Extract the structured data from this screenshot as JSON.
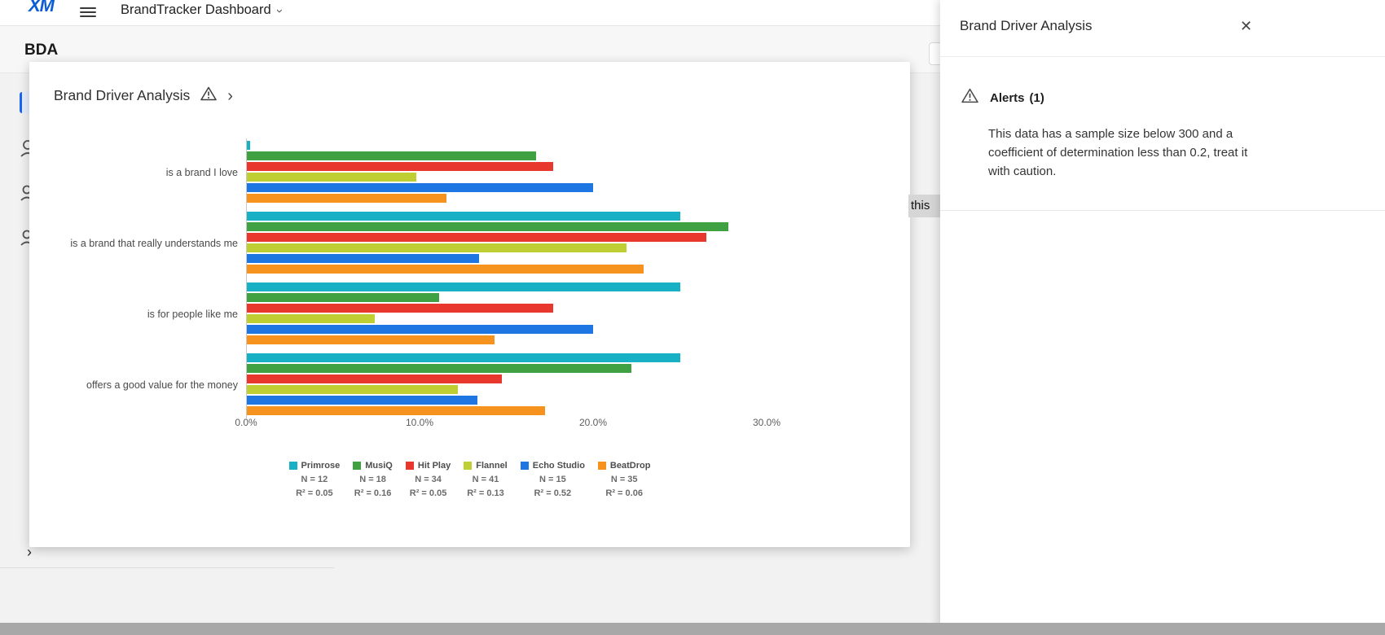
{
  "topbar": {
    "logo": "XM",
    "title": "BrandTracker Dashboard"
  },
  "page": {
    "heading": "BDA",
    "tooltip_fragment": "this"
  },
  "modal": {
    "title": "Brand Driver Analysis"
  },
  "panel": {
    "title": "Brand Driver Analysis",
    "alerts_label": "Alerts",
    "alerts_count": "(1)",
    "alert_text": "This data has a sample size below 300 and a coefficient of determination less than 0.2, treat it with caution."
  },
  "icons": {
    "close": "✕",
    "chevron_right": "›",
    "chevron_down": "›",
    "warning": "warning-triangle",
    "hamburger": "hamburger-menu"
  },
  "chart_data": {
    "type": "bar",
    "orientation": "horizontal",
    "title": "Brand Driver Analysis",
    "categories": [
      "is a brand I love",
      "is a brand that really understands me",
      "is for people like me",
      "offers a good value for the money"
    ],
    "series": [
      {
        "name": "Primrose",
        "color": "#17B0C4",
        "n": "N = 12",
        "r2": "R² = 0.05",
        "values": [
          0.2,
          25.0,
          25.0,
          25.0
        ]
      },
      {
        "name": "MusiQ",
        "color": "#3FA142",
        "n": "N = 18",
        "r2": "R² = 0.16",
        "values": [
          16.7,
          27.8,
          11.1,
          22.2
        ]
      },
      {
        "name": "Hit Play",
        "color": "#E8382D",
        "n": "N = 34",
        "r2": "R² = 0.05",
        "values": [
          17.7,
          26.5,
          17.7,
          14.7
        ]
      },
      {
        "name": "Flannel",
        "color": "#BFCE33",
        "n": "N = 41",
        "r2": "R² = 0.13",
        "values": [
          9.8,
          21.9,
          7.4,
          12.2
        ]
      },
      {
        "name": "Echo Studio",
        "color": "#1D76E2",
        "n": "N = 15",
        "r2": "R² = 0.52",
        "values": [
          20.0,
          13.4,
          20.0,
          13.3
        ]
      },
      {
        "name": "BeatDrop",
        "color": "#F6921E",
        "n": "N = 35",
        "r2": "R² = 0.06",
        "values": [
          11.5,
          22.9,
          14.3,
          17.2
        ]
      }
    ],
    "x_ticks": [
      "0.0%",
      "10.0%",
      "20.0%",
      "30.0%"
    ],
    "xlim": [
      0,
      30
    ],
    "grid": false,
    "legend_position": "bottom"
  }
}
